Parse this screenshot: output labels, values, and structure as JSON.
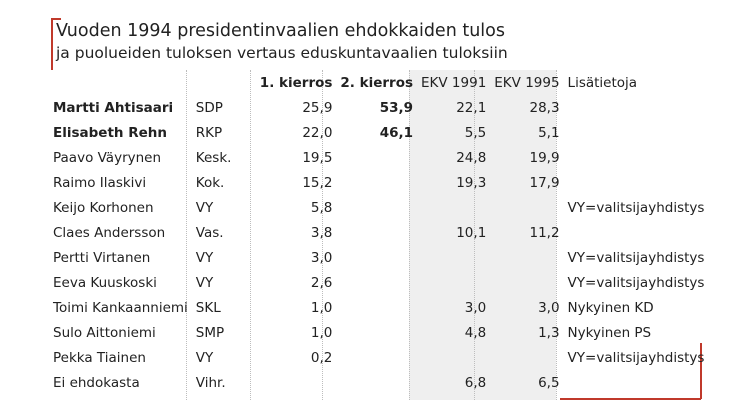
{
  "title": "Vuoden 1994 presidentinvaalien ehdokkaiden tulos",
  "subtitle": "ja puolueiden tuloksen vertaus eduskuntavaalien tuloksiin",
  "headers": {
    "round1": "1. kierros",
    "round2": "2. kierros",
    "ekv1991": "EKV 1991",
    "ekv1995": "EKV 1995",
    "info": "Lisätietoja"
  },
  "rows": [
    {
      "name": "Martti Ahtisaari",
      "party": "SDP",
      "round1": "25,9",
      "round2": "53,9",
      "ekv1991": "22,1",
      "ekv1995": "28,3",
      "info": ""
    },
    {
      "name": "Elisabeth Rehn",
      "party": "RKP",
      "round1": "22,0",
      "round2": "46,1",
      "ekv1991": "5,5",
      "ekv1995": "5,1",
      "info": ""
    },
    {
      "name": "Paavo Väyrynen",
      "party": "Kesk.",
      "round1": "19,5",
      "round2": "",
      "ekv1991": "24,8",
      "ekv1995": "19,9",
      "info": ""
    },
    {
      "name": "Raimo Ilaskivi",
      "party": "Kok.",
      "round1": "15,2",
      "round2": "",
      "ekv1991": "19,3",
      "ekv1995": "17,9",
      "info": ""
    },
    {
      "name": "Keijo Korhonen",
      "party": "VY",
      "round1": "5,8",
      "round2": "",
      "ekv1991": "",
      "ekv1995": "",
      "info": "VY=valitsijayhdistys"
    },
    {
      "name": "Claes Andersson",
      "party": "Vas.",
      "round1": "3,8",
      "round2": "",
      "ekv1991": "10,1",
      "ekv1995": "11,2",
      "info": ""
    },
    {
      "name": "Pertti Virtanen",
      "party": "VY",
      "round1": "3,0",
      "round2": "",
      "ekv1991": "",
      "ekv1995": "",
      "info": "VY=valitsijayhdistys"
    },
    {
      "name": "Eeva Kuuskoski",
      "party": "VY",
      "round1": "2,6",
      "round2": "",
      "ekv1991": "",
      "ekv1995": "",
      "info": "VY=valitsijayhdistys"
    },
    {
      "name": "Toimi Kankaanniemi",
      "party": "SKL",
      "round1": "1,0",
      "round2": "",
      "ekv1991": "3,0",
      "ekv1995": "3,0",
      "info": "Nykyinen KD"
    },
    {
      "name": "Sulo Aittoniemi",
      "party": "SMP",
      "round1": "1,0",
      "round2": "",
      "ekv1991": "4,8",
      "ekv1995": "1,3",
      "info": "Nykyinen PS"
    },
    {
      "name": "Pekka Tiainen",
      "party": "VY",
      "round1": "0,2",
      "round2": "",
      "ekv1991": "",
      "ekv1995": "",
      "info": "VY=valitsijayhdistys"
    },
    {
      "name": "Ei ehdokasta",
      "party": "Vihr.",
      "round1": "",
      "round2": "",
      "ekv1991": "6,8",
      "ekv1995": "6,5",
      "info": ""
    }
  ],
  "colors": {
    "frame": "#c0392b",
    "ekv_background": "#efefef"
  }
}
